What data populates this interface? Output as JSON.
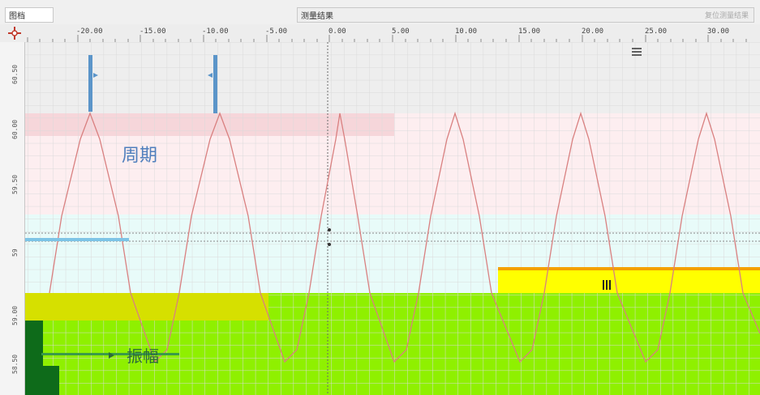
{
  "tabs": {
    "graph_label": "图档",
    "measure_label": "测量结果",
    "measure_action": "复位测量结果"
  },
  "ruler": {
    "ticks": [
      "-20.00",
      "-15.00",
      "-10.00",
      "-5.00",
      "0.00",
      "5.00",
      "10.00",
      "15.00",
      "20.00",
      "25.00",
      "30.00"
    ]
  },
  "vruler": {
    "ticks": [
      "60.50",
      "60.00",
      "59.50",
      "59",
      "59.00",
      "58.50"
    ]
  },
  "annotations": {
    "period": "周期",
    "amplitude": "振幅"
  },
  "colors": {
    "waveform": "#d98080",
    "cursor_blue": "#5b95c9",
    "highlight_green": "#8ff000",
    "highlight_yellow": "#ffff00",
    "band_pink": "#f6d6da",
    "band_cyan": "#e8fbf9"
  },
  "icons": {
    "crosshair": "crosshair-icon",
    "menu": "hamburger-icon"
  }
}
